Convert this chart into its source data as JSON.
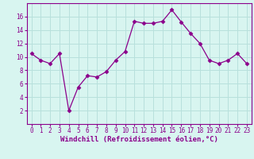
{
  "x": [
    0,
    1,
    2,
    3,
    4,
    5,
    6,
    7,
    8,
    9,
    10,
    11,
    12,
    13,
    14,
    15,
    16,
    17,
    18,
    19,
    20,
    21,
    22,
    23
  ],
  "y": [
    10.5,
    9.5,
    9.0,
    10.5,
    2.0,
    5.5,
    7.2,
    7.0,
    7.8,
    9.5,
    10.8,
    15.3,
    15.0,
    15.0,
    15.3,
    17.0,
    15.2,
    13.5,
    12.0,
    9.5,
    9.0,
    9.5,
    10.5,
    9.0
  ],
  "line_color": "#8B008B",
  "marker": "D",
  "marker_size": 2.5,
  "background_color": "#d8f5f0",
  "grid_color": "#b8e0dc",
  "axis_color": "#8B008B",
  "xlabel": "Windchill (Refroidissement éolien,°C)",
  "ylim": [
    0,
    18
  ],
  "xlim": [
    -0.5,
    23.5
  ],
  "yticks": [
    2,
    4,
    6,
    8,
    10,
    12,
    14,
    16
  ],
  "xticks": [
    0,
    1,
    2,
    3,
    4,
    5,
    6,
    7,
    8,
    9,
    10,
    11,
    12,
    13,
    14,
    15,
    16,
    17,
    18,
    19,
    20,
    21,
    22,
    23
  ],
  "tick_fontsize": 5.5,
  "label_fontsize": 6.5
}
